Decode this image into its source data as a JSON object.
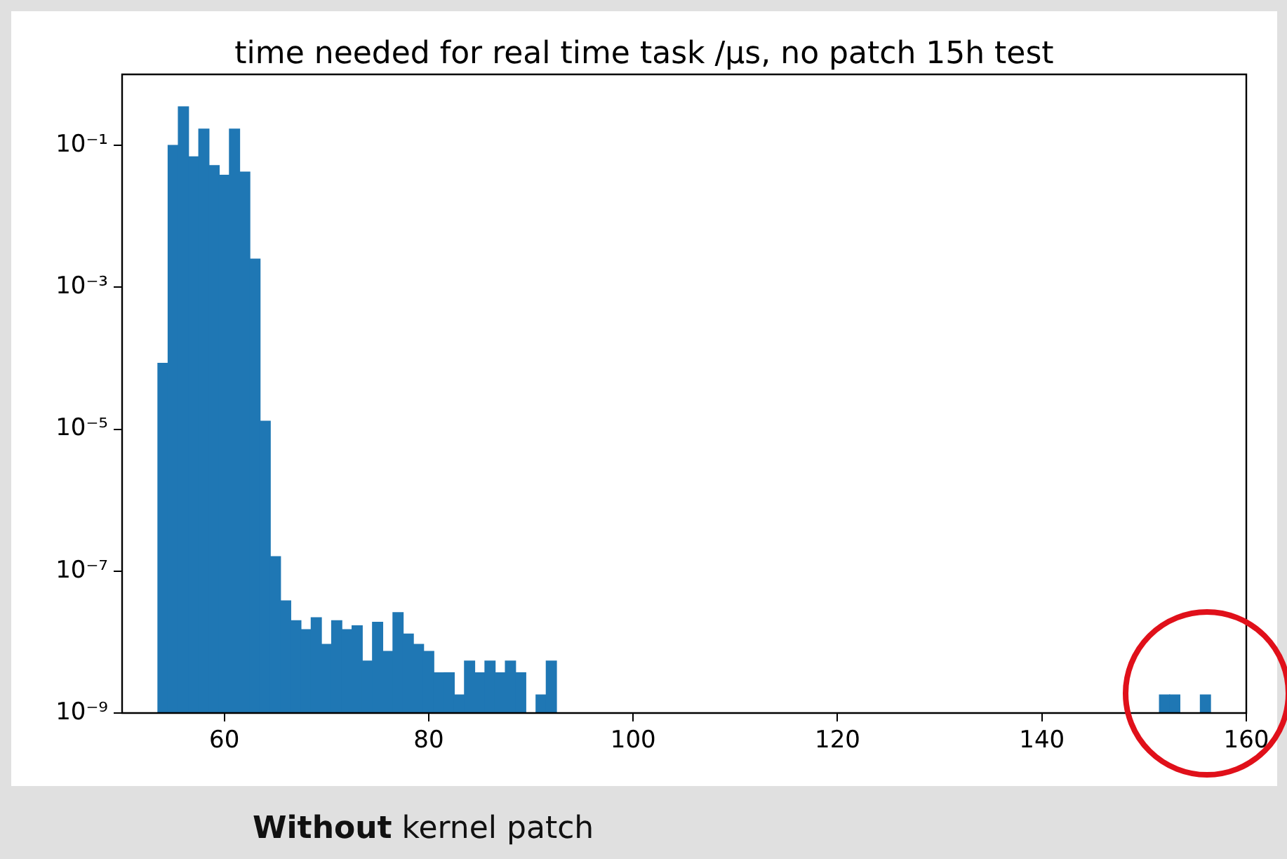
{
  "chart_data": {
    "type": "histogram",
    "title": "time needed for real time task /µs, no patch 15h test",
    "annotations": [
      "Without kernel patch"
    ],
    "bins": [
      53.5,
      54.5,
      55.5,
      56.5,
      57.5,
      58.5,
      59.5,
      60.5,
      61.5,
      62.5,
      63.5,
      64.5,
      65.5,
      66.5,
      67.5,
      68.5,
      69.5,
      70.5,
      71.5,
      72.5,
      73.5,
      74.5,
      75.5,
      76.5,
      77.5,
      78.5,
      79.5,
      80.5,
      81.5,
      82.5,
      83.5,
      84.5,
      85.5,
      86.5,
      87.5,
      88.5,
      89.5,
      90.5,
      91.5,
      92.5,
      93.5,
      94.5,
      95.5,
      96.5,
      97.5,
      98.5,
      99.5,
      100.5,
      101.5,
      102.5,
      103.5,
      104.5,
      105.5,
      106.5,
      107.5,
      108.5,
      109.5,
      110.5,
      111.5,
      112.5,
      113.5,
      114.5,
      115.5,
      116.5,
      117.5,
      118.5,
      119.5,
      120.5,
      121.5,
      122.5,
      123.5,
      124.5,
      125.5,
      126.5,
      127.5,
      128.5,
      129.5,
      130.5,
      131.5,
      132.5,
      133.5,
      134.5,
      135.5,
      136.5,
      137.5,
      138.5,
      139.5,
      140.5,
      141.5,
      142.5,
      143.5,
      144.5,
      145.5,
      146.5,
      147.5,
      148.5,
      149.5,
      150.5,
      151.5,
      152.5,
      153.5,
      154.5,
      155.5,
      156.5
    ],
    "values": [
      8.5e-05,
      0.1,
      0.35,
      0.069,
      0.17,
      0.052,
      0.038,
      0.17,
      0.042,
      0.0025,
      1.3e-05,
      1.6e-07,
      3.8e-08,
      2e-08,
      1.5e-08,
      2.2e-08,
      9.3e-09,
      2e-08,
      1.5e-08,
      1.7e-08,
      5.4e-09,
      1.9e-08,
      7.4e-09,
      2.6e-08,
      1.3e-08,
      9.3e-09,
      7.4e-09,
      3.7e-09,
      3.7e-09,
      1.8e-09,
      5.4e-09,
      3.7e-09,
      5.4e-09,
      3.7e-09,
      5.4e-09,
      3.7e-09,
      null,
      1.8e-09,
      5.4e-09,
      null,
      null,
      null,
      null,
      null,
      null,
      null,
      null,
      null,
      null,
      null,
      null,
      null,
      null,
      null,
      null,
      null,
      null,
      null,
      null,
      null,
      null,
      null,
      null,
      null,
      null,
      null,
      null,
      null,
      null,
      null,
      null,
      null,
      null,
      null,
      null,
      null,
      null,
      null,
      null,
      null,
      null,
      null,
      null,
      null,
      null,
      null,
      null,
      null,
      null,
      null,
      null,
      null,
      null,
      null,
      null,
      null,
      null,
      null,
      1.8e-09,
      1.8e-09,
      null,
      null,
      1.8e-09
    ],
    "color": "#1f77b4",
    "log": "y",
    "grid": false,
    "legend": false,
    "xlim": [
      50,
      160
    ],
    "xticks": [
      60,
      80,
      100,
      120,
      140,
      160
    ],
    "ylim": [
      1e-09,
      1
    ],
    "yticks": [
      {
        "value": 1e-09,
        "label": "10⁻⁹"
      },
      {
        "value": 1e-07,
        "label": "10⁻⁷"
      },
      {
        "value": 1e-05,
        "label": "10⁻⁵"
      },
      {
        "value": 0.001,
        "label": "10⁻³"
      },
      {
        "value": 0.1,
        "label": "10⁻¹"
      }
    ]
  }
}
